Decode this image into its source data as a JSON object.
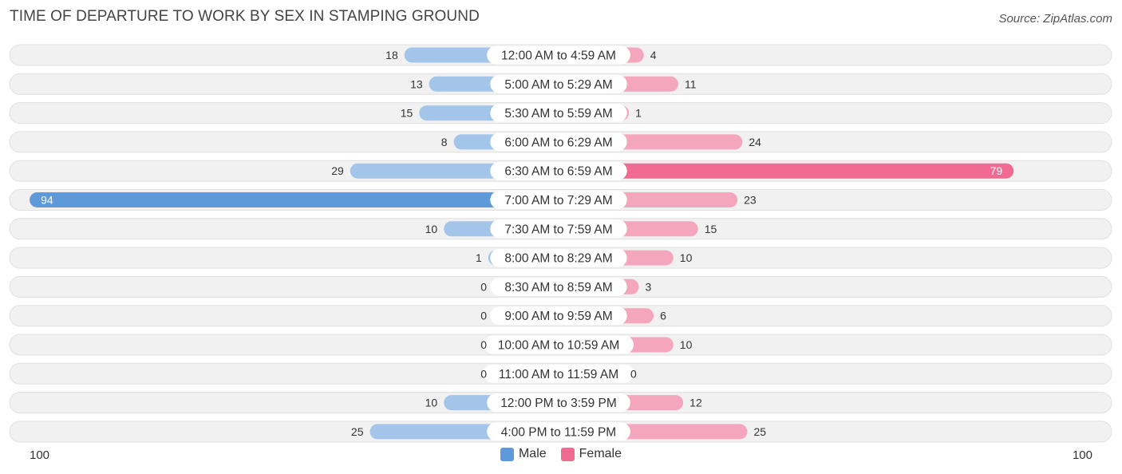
{
  "title": "TIME OF DEPARTURE TO WORK BY SEX IN STAMPING GROUND",
  "source": "Source: ZipAtlas.com",
  "colors": {
    "male_light": "#a4c5ea",
    "male_strong": "#5e9ad9",
    "female_light": "#f5a6bf",
    "female_strong": "#f06a92",
    "row_bg": "#f1f1f1",
    "row_border": "#e0e0e0"
  },
  "legend": {
    "male": "Male",
    "female": "Female"
  },
  "axis": {
    "left_max_label": "100",
    "right_max_label": "100"
  },
  "chart_data": {
    "type": "bar",
    "orientation": "horizontal-diverging",
    "categories": [
      "12:00 AM to 4:59 AM",
      "5:00 AM to 5:29 AM",
      "5:30 AM to 5:59 AM",
      "6:00 AM to 6:29 AM",
      "6:30 AM to 6:59 AM",
      "7:00 AM to 7:29 AM",
      "7:30 AM to 7:59 AM",
      "8:00 AM to 8:29 AM",
      "8:30 AM to 8:59 AM",
      "9:00 AM to 9:59 AM",
      "10:00 AM to 10:59 AM",
      "11:00 AM to 11:59 AM",
      "12:00 PM to 3:59 PM",
      "4:00 PM to 11:59 PM"
    ],
    "series": [
      {
        "name": "Male",
        "values": [
          18,
          13,
          15,
          8,
          29,
          94,
          10,
          1,
          0,
          0,
          0,
          0,
          10,
          25
        ]
      },
      {
        "name": "Female",
        "values": [
          4,
          11,
          1,
          24,
          79,
          23,
          15,
          10,
          3,
          6,
          10,
          0,
          12,
          25
        ]
      }
    ],
    "xlim": [
      0,
      100
    ],
    "legend_position": "bottom-center",
    "grid": false
  }
}
